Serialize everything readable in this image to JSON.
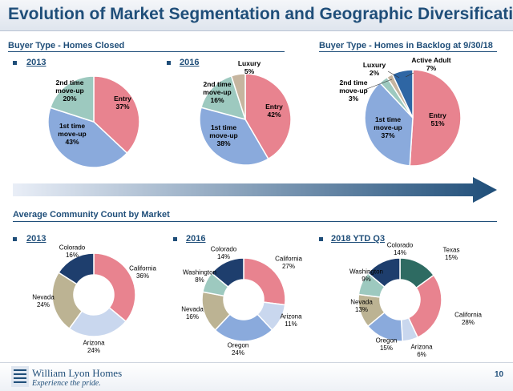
{
  "title": "Evolution of Market Segmentation and Geographic Diversification",
  "sections": {
    "homes_closed": "Buyer Type - Homes Closed",
    "backlog": "Buyer Type - Homes in Backlog at 9/30/18",
    "community": "Average Community Count by Market"
  },
  "footer": {
    "company": "William Lyon Homes",
    "tagline": "Experience the pride.",
    "page": "10"
  },
  "colors": {
    "entry": "#e8838f",
    "first": "#8aaadc",
    "second": "#9dc9bf",
    "luxury": "#c6b59f",
    "active_adult": "#2e66a4",
    "california": "#e8838f",
    "arizona": "#c9d7ee",
    "oregon": "#8aaadc",
    "nevada": "#bcb393",
    "washington": "#9dc9bf",
    "colorado": "#1e3e6d",
    "texas": "#2e6b62",
    "accent": "#1f4e79"
  },
  "chart_data": [
    {
      "type": "pie",
      "title": "2013",
      "slices": [
        {
          "name": "Entry",
          "label": "Entry",
          "value": 37
        },
        {
          "name": "1st time move-up",
          "label": "1st time move-up",
          "value": 43
        },
        {
          "name": "2nd time move-up",
          "label": "2nd time move-up",
          "value": 20
        }
      ]
    },
    {
      "type": "pie",
      "title": "2016",
      "slices": [
        {
          "name": "Entry",
          "label": "Entry",
          "value": 42
        },
        {
          "name": "1st time move-up",
          "label": "1st time move-up",
          "value": 38
        },
        {
          "name": "2nd time move-up",
          "label": "2nd time move-up",
          "value": 16
        },
        {
          "name": "Luxury",
          "label": "Luxury",
          "value": 5
        }
      ]
    },
    {
      "type": "pie",
      "title": "Homes in Backlog at 9/30/18",
      "slices": [
        {
          "name": "Entry",
          "label": "Entry",
          "value": 51
        },
        {
          "name": "1st time move-up",
          "label": "1st time move-up",
          "value": 37
        },
        {
          "name": "2nd time move-up",
          "label": "2nd time move-up",
          "value": 3
        },
        {
          "name": "Luxury",
          "label": "Luxury",
          "value": 2
        },
        {
          "name": "Active Adult",
          "label": "Active Adult",
          "value": 7
        }
      ]
    },
    {
      "type": "donut",
      "title": "2013",
      "slices": [
        {
          "name": "California",
          "label": "California",
          "value": 36
        },
        {
          "name": "Arizona",
          "label": "Arizona",
          "value": 24
        },
        {
          "name": "Nevada",
          "label": "Nevada",
          "value": 24
        },
        {
          "name": "Colorado",
          "label": "Colorado",
          "value": 16
        }
      ]
    },
    {
      "type": "donut",
      "title": "2016",
      "slices": [
        {
          "name": "California",
          "label": "California",
          "value": 27
        },
        {
          "name": "Arizona",
          "label": "Arizona",
          "value": 11
        },
        {
          "name": "Oregon",
          "label": "Oregon",
          "value": 24
        },
        {
          "name": "Nevada",
          "label": "Nevada",
          "value": 16
        },
        {
          "name": "Washington",
          "label": "Washington",
          "value": 8
        },
        {
          "name": "Colorado",
          "label": "Colorado",
          "value": 14
        }
      ]
    },
    {
      "type": "donut",
      "title": "2018 YTD Q3",
      "slices": [
        {
          "name": "Texas",
          "label": "Texas",
          "value": 15
        },
        {
          "name": "California",
          "label": "California",
          "value": 28
        },
        {
          "name": "Arizona",
          "label": "Arizona",
          "value": 6
        },
        {
          "name": "Oregon",
          "label": "Oregon",
          "value": 15
        },
        {
          "name": "Nevada",
          "label": "Nevada",
          "value": 13
        },
        {
          "name": "Washington",
          "label": "Washington",
          "value": 9
        },
        {
          "name": "Colorado",
          "label": "Colorado",
          "value": 14
        }
      ]
    }
  ]
}
